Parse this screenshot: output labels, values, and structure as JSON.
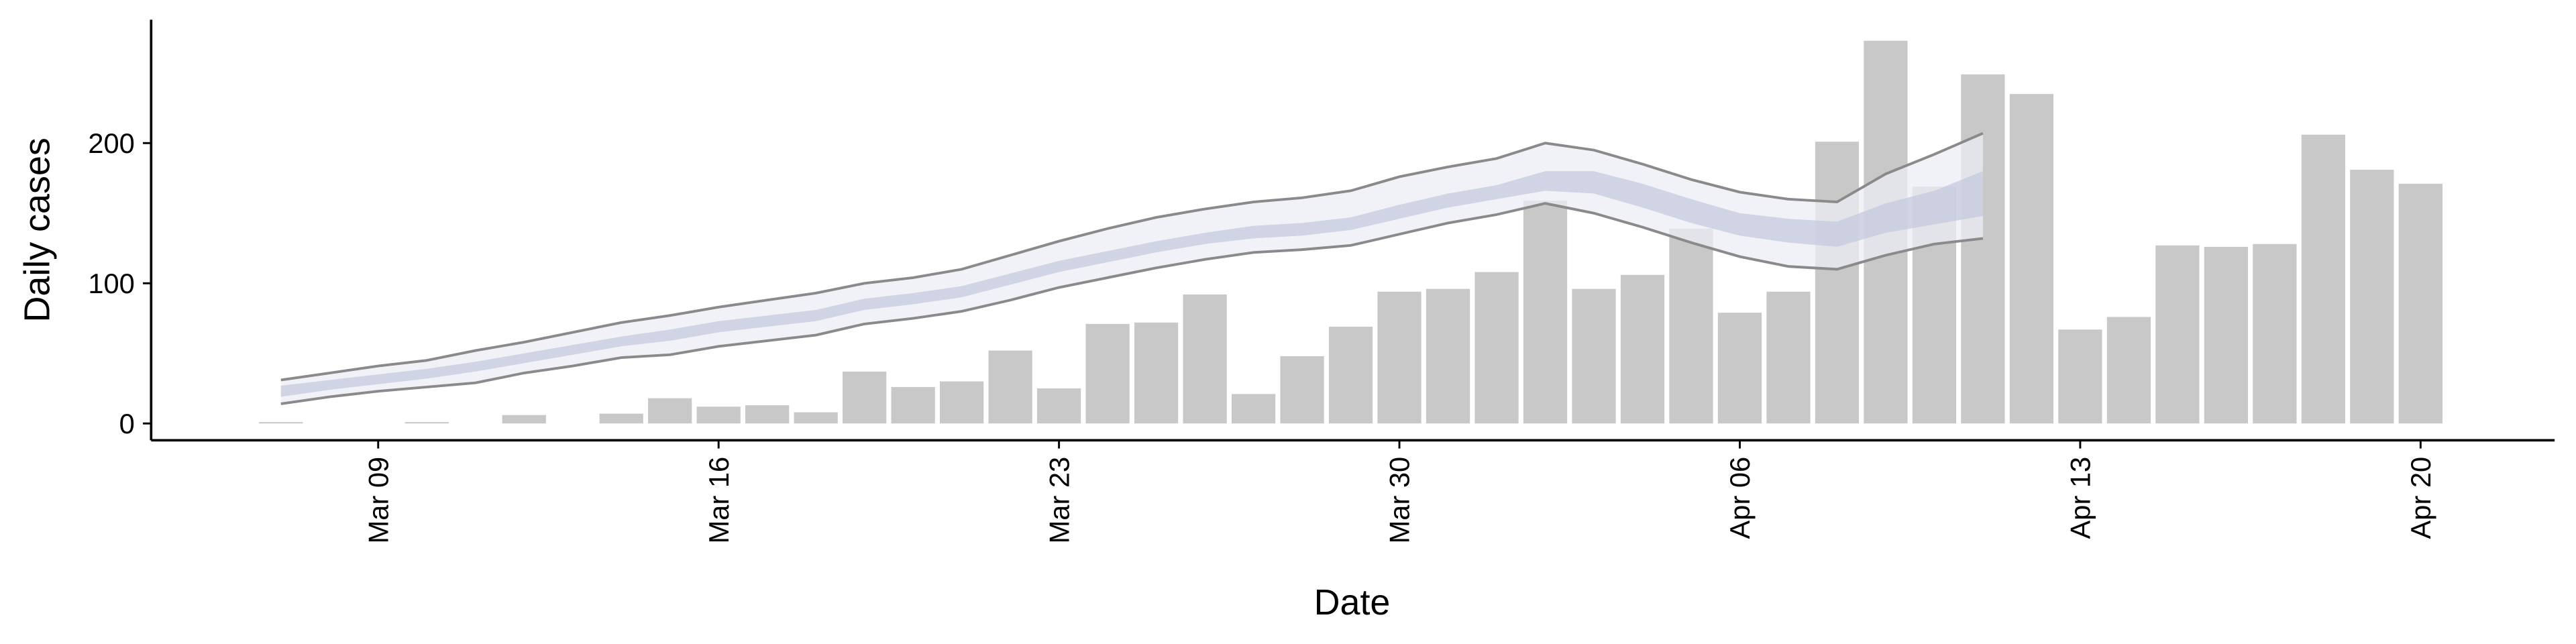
{
  "chart_data": {
    "type": "bar",
    "x_label": "Date",
    "y_label": "Daily cases",
    "categories": [
      null,
      null,
      "Mar 09",
      null,
      null,
      null,
      null,
      null,
      null,
      "Mar 16",
      null,
      null,
      null,
      null,
      null,
      null,
      "Mar 23",
      null,
      null,
      null,
      null,
      null,
      null,
      "Mar 30",
      null,
      null,
      null,
      null,
      null,
      null,
      "Apr 06",
      null,
      null,
      null,
      null,
      null,
      null,
      "Apr 13",
      null,
      null,
      null,
      null,
      null,
      null,
      "Apr 20"
    ],
    "values": [
      1,
      0,
      0,
      1,
      0,
      6,
      0,
      7,
      18,
      12,
      13,
      8,
      37,
      26,
      30,
      52,
      25,
      71,
      72,
      92,
      21,
      48,
      69,
      94,
      96,
      108,
      159,
      96,
      106,
      139,
      79,
      94,
      201,
      273,
      169,
      249,
      235,
      67,
      76,
      127,
      126,
      128,
      206,
      181,
      171
    ],
    "color": "#c8c8c8",
    "interval_90": {
      "lower": [
        14,
        19,
        23,
        26,
        29,
        36,
        41,
        47,
        49,
        55,
        59,
        63,
        71,
        75,
        80,
        88,
        97,
        104,
        111,
        117,
        122,
        124,
        127,
        135,
        143,
        149,
        157,
        150,
        140,
        129,
        119,
        112,
        110,
        120,
        128,
        132
      ],
      "upper": [
        31,
        36,
        41,
        45,
        52,
        58,
        65,
        72,
        77,
        83,
        88,
        93,
        100,
        104,
        110,
        120,
        130,
        139,
        147,
        153,
        158,
        161,
        166,
        176,
        183,
        189,
        200,
        195,
        185,
        174,
        165,
        160,
        158,
        178,
        192,
        207
      ],
      "color": "#eceef5",
      "line_color": "#8a8a8a"
    },
    "interval_50": {
      "lower": [
        19,
        24,
        28,
        32,
        37,
        43,
        49,
        55,
        59,
        65,
        69,
        73,
        81,
        85,
        90,
        99,
        108,
        115,
        122,
        128,
        132,
        134,
        138,
        146,
        154,
        160,
        166,
        164,
        154,
        143,
        134,
        129,
        126,
        136,
        142,
        148
      ],
      "upper": [
        27,
        31,
        35,
        39,
        44,
        50,
        56,
        62,
        67,
        73,
        77,
        81,
        89,
        93,
        98,
        107,
        116,
        123,
        130,
        136,
        141,
        143,
        147,
        156,
        164,
        170,
        180,
        180,
        171,
        160,
        150,
        146,
        144,
        157,
        166,
        180
      ],
      "color": "#c5cadd"
    },
    "ylim": [
      -12,
      288
    ],
    "yticks": [
      0,
      100,
      200
    ]
  }
}
